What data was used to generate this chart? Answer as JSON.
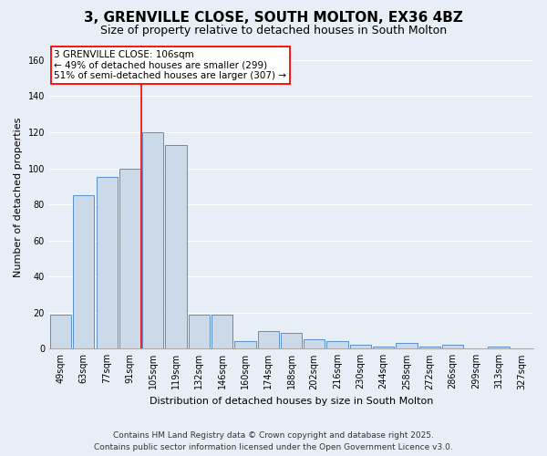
{
  "title": "3, GRENVILLE CLOSE, SOUTH MOLTON, EX36 4BZ",
  "subtitle": "Size of property relative to detached houses in South Molton",
  "xlabel": "Distribution of detached houses by size in South Molton",
  "ylabel": "Number of detached properties",
  "categories": [
    "49sqm",
    "63sqm",
    "77sqm",
    "91sqm",
    "105sqm",
    "119sqm",
    "132sqm",
    "146sqm",
    "160sqm",
    "174sqm",
    "188sqm",
    "202sqm",
    "216sqm",
    "230sqm",
    "244sqm",
    "258sqm",
    "272sqm",
    "286sqm",
    "299sqm",
    "313sqm",
    "327sqm"
  ],
  "values": [
    19,
    85,
    95,
    100,
    120,
    113,
    19,
    19,
    4,
    10,
    9,
    5,
    4,
    2,
    1,
    3,
    1,
    2,
    0,
    1,
    0
  ],
  "bar_color": "#ccd9e8",
  "bar_edge_color": "#5b8fc9",
  "red_line_index": 4,
  "annotation_line1": "3 GRENVILLE CLOSE: 106sqm",
  "annotation_line2": "← 49% of detached houses are smaller (299)",
  "annotation_line3": "51% of semi-detached houses are larger (307) →",
  "annotation_box_color": "white",
  "annotation_box_edge_color": "red",
  "ylim": [
    0,
    168
  ],
  "yticks": [
    0,
    20,
    40,
    60,
    80,
    100,
    120,
    140,
    160
  ],
  "footer_line1": "Contains HM Land Registry data © Crown copyright and database right 2025.",
  "footer_line2": "Contains public sector information licensed under the Open Government Licence v3.0.",
  "background_color": "#e8eef5",
  "grid_color": "#ffffff",
  "title_fontsize": 11,
  "subtitle_fontsize": 9,
  "axis_label_fontsize": 8,
  "tick_fontsize": 7,
  "annotation_fontsize": 7.5,
  "footer_fontsize": 6.5
}
